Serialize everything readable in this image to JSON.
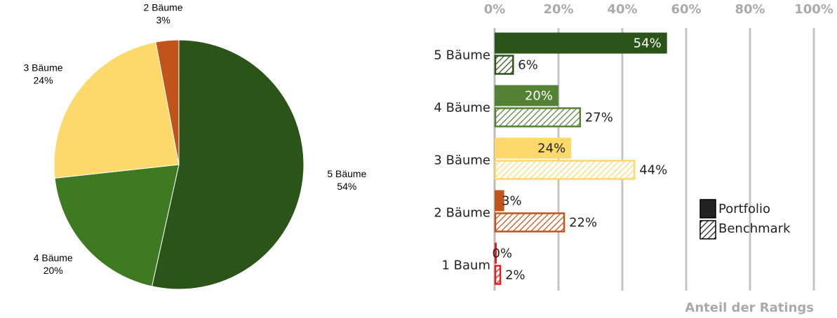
{
  "chart_data": [
    {
      "type": "pie",
      "categories": [
        "5 Bäume",
        "4 Bäume",
        "3 Bäume",
        "2 Bäume"
      ],
      "values": [
        54,
        20,
        24,
        3
      ],
      "value_labels": [
        "54%",
        "20%",
        "24%",
        "3%"
      ],
      "colors": [
        "#2a5418",
        "#3d7a22",
        "#fdd86a",
        "#c0541a"
      ]
    },
    {
      "type": "hbar",
      "x_label": "Anteil der Ratings",
      "categories": [
        "5 Bäume",
        "4 Bäume",
        "3 Bäume",
        "2 Bäume",
        "1 Baum"
      ],
      "colors": [
        "#2a5418",
        "#548235",
        "#fdd86a",
        "#c0541a",
        "#e02020"
      ],
      "series": [
        {
          "name": "Portfolio",
          "values": [
            54,
            20,
            24,
            3,
            0
          ],
          "value_labels": [
            "54%",
            "20%",
            "24%",
            "3%",
            "0%"
          ]
        },
        {
          "name": "Benchmark",
          "values": [
            6,
            27,
            44,
            22,
            2
          ],
          "value_labels": [
            "6%",
            "27%",
            "44%",
            "22%",
            "2%"
          ]
        }
      ],
      "xlim": [
        0,
        100
      ],
      "xticks": [
        {
          "value": 0,
          "label": "0%"
        },
        {
          "value": 20,
          "label": "20%"
        },
        {
          "value": 40,
          "label": "40%"
        },
        {
          "value": 60,
          "label": "60%"
        },
        {
          "value": 80,
          "label": "80%"
        },
        {
          "value": 100,
          "label": "100%"
        }
      ],
      "grid": true
    }
  ]
}
